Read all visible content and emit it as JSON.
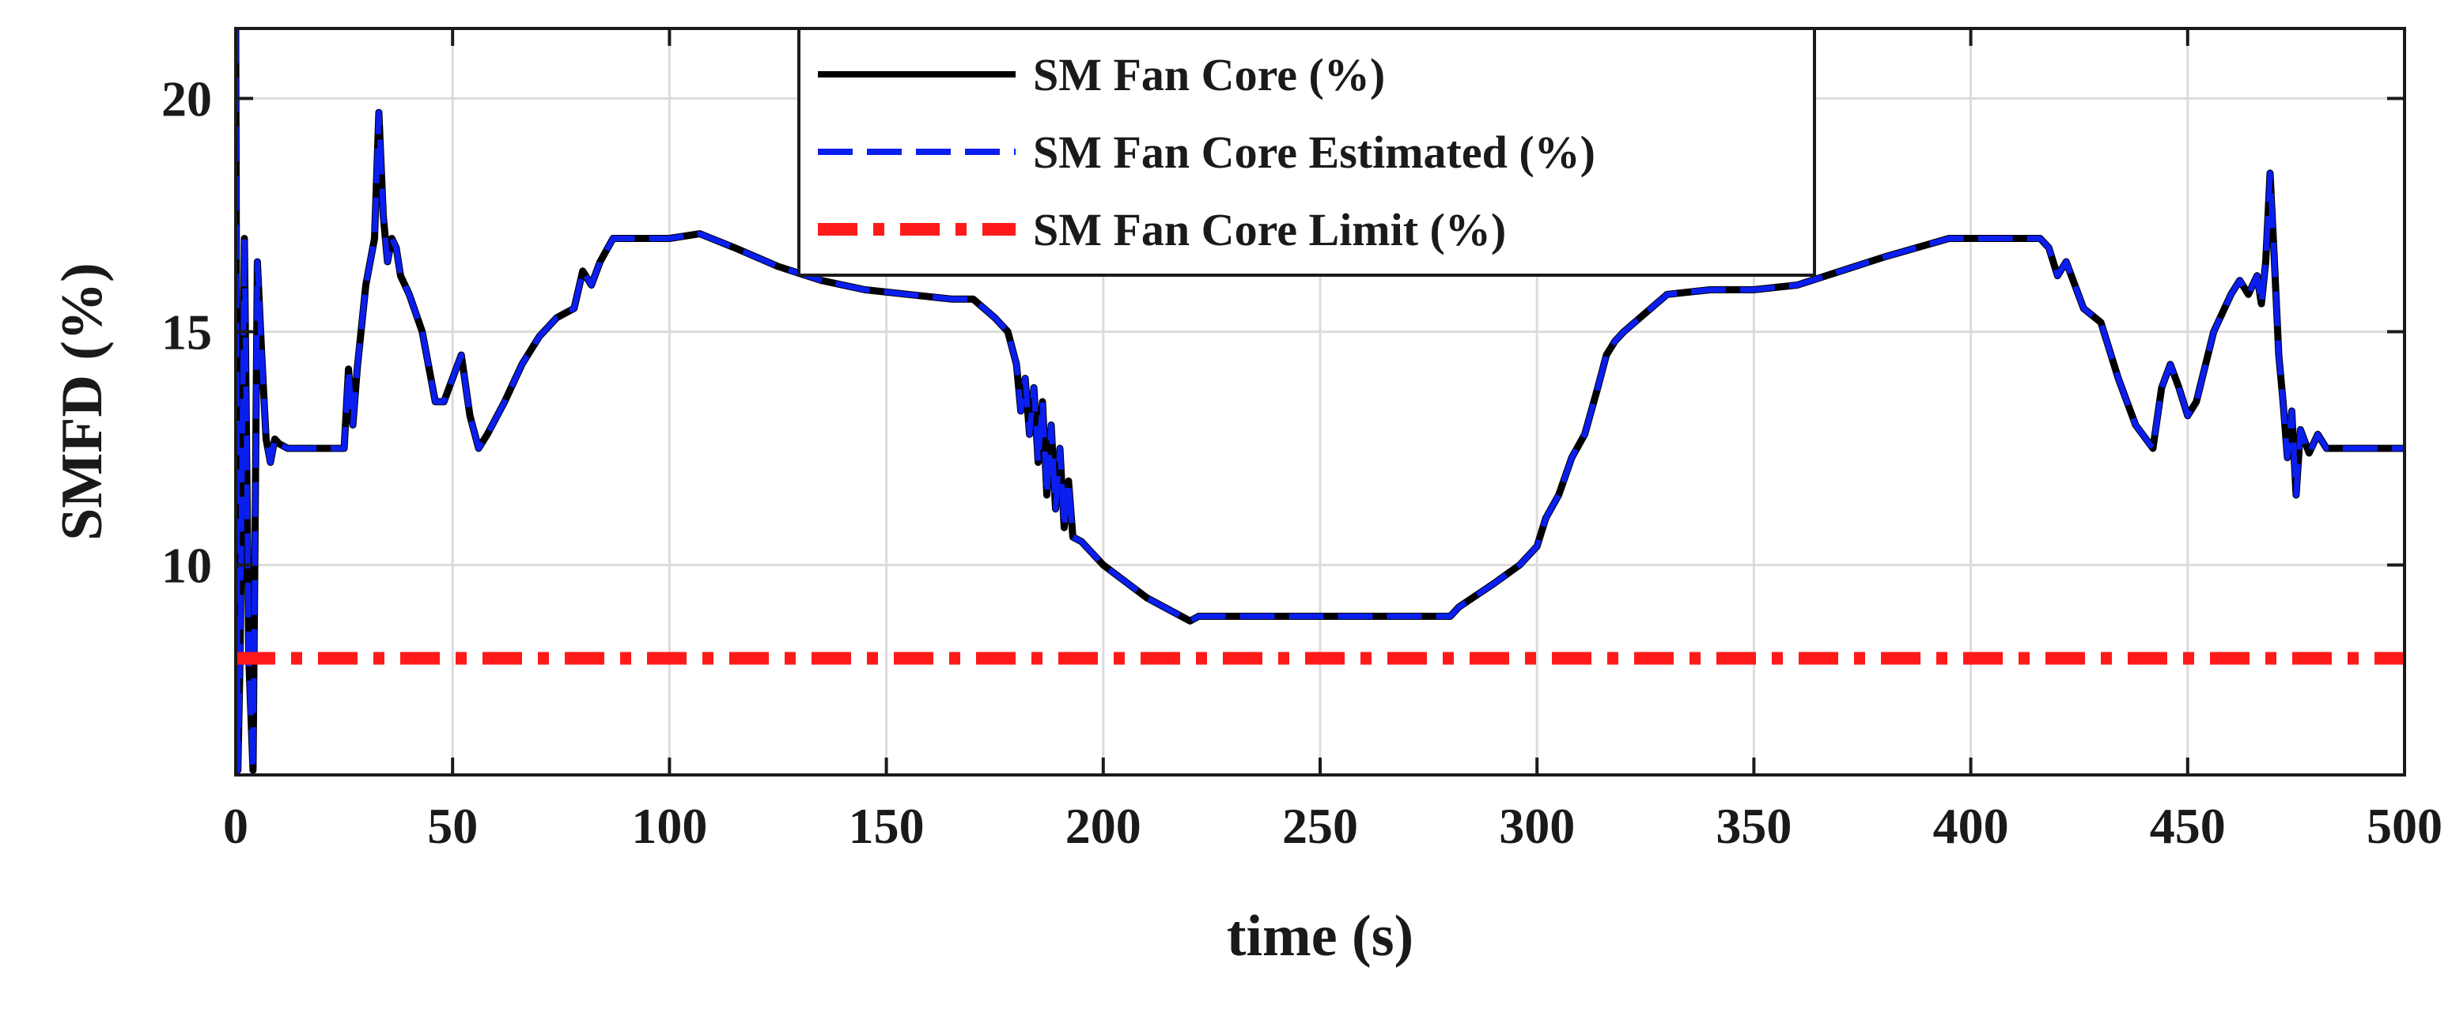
{
  "chart_data": {
    "type": "line",
    "title": "",
    "xlabel": "time (s)",
    "ylabel": "SMFD (%)",
    "xlim": [
      0,
      500
    ],
    "ylim": [
      5.5,
      21.5
    ],
    "xticks": [
      0,
      50,
      100,
      150,
      200,
      250,
      300,
      350,
      400,
      450,
      500
    ],
    "yticks": [
      10,
      15,
      20
    ],
    "grid": true,
    "legend_position": "top-center",
    "series": [
      {
        "name": "SM Fan Core (%)",
        "color": "#000000",
        "style": "solid",
        "x": [
          0,
          0.5,
          1,
          2,
          3,
          4,
          5,
          6,
          7,
          8,
          9,
          10,
          12,
          15,
          20,
          25,
          26,
          27,
          28,
          30,
          32,
          33,
          34,
          35,
          36,
          37,
          38,
          40,
          43,
          46,
          48,
          50,
          52,
          54,
          56,
          58,
          62,
          66,
          70,
          74,
          78,
          80,
          82,
          84,
          87,
          100,
          107,
          115,
          125,
          135,
          145,
          155,
          165,
          170,
          175,
          178,
          180,
          181,
          182,
          183,
          184,
          185,
          186,
          187,
          188,
          189,
          190,
          191,
          192,
          193,
          195,
          200,
          210,
          218,
          220,
          222,
          230,
          250,
          270,
          280,
          282,
          290,
          296,
          300,
          302,
          305,
          308,
          311,
          314,
          316,
          318,
          320,
          330,
          340,
          350,
          360,
          370,
          380,
          395,
          400,
          410,
          416,
          418,
          420,
          422,
          424,
          426,
          430,
          434,
          438,
          442,
          444,
          446,
          448,
          450,
          452,
          456,
          460,
          462,
          464,
          466,
          467,
          468,
          469,
          470,
          471,
          472,
          473,
          474,
          475,
          476,
          478,
          480,
          482,
          485,
          500
        ],
        "y": [
          21.5,
          5.6,
          8.0,
          17.0,
          8.0,
          5.6,
          16.5,
          14.5,
          12.7,
          12.2,
          12.7,
          12.6,
          12.5,
          12.5,
          12.5,
          12.5,
          14.2,
          13.0,
          14.2,
          16.0,
          17.0,
          19.7,
          17.5,
          16.5,
          17.0,
          16.8,
          16.2,
          15.8,
          15.0,
          13.5,
          13.5,
          14.0,
          14.5,
          13.2,
          12.5,
          12.8,
          13.5,
          14.3,
          14.9,
          15.3,
          15.5,
          16.3,
          16.0,
          16.5,
          17.0,
          17.0,
          17.1,
          16.8,
          16.4,
          16.1,
          15.9,
          15.8,
          15.7,
          15.7,
          15.3,
          15.0,
          14.3,
          13.3,
          14.0,
          12.8,
          13.8,
          12.2,
          13.5,
          11.5,
          13.0,
          11.2,
          12.5,
          10.8,
          11.8,
          10.6,
          10.5,
          10.0,
          9.3,
          8.9,
          8.8,
          8.9,
          8.9,
          8.9,
          8.9,
          8.9,
          9.1,
          9.6,
          10.0,
          10.4,
          11.0,
          11.5,
          12.3,
          12.8,
          13.8,
          14.5,
          14.8,
          15.0,
          15.8,
          15.9,
          15.9,
          16.0,
          16.3,
          16.6,
          17.0,
          17.0,
          17.0,
          17.0,
          16.8,
          16.2,
          16.5,
          16.0,
          15.5,
          15.2,
          14.0,
          13.0,
          12.5,
          13.8,
          14.3,
          13.8,
          13.2,
          13.5,
          15.0,
          15.8,
          16.1,
          15.8,
          16.2,
          15.6,
          16.5,
          18.4,
          16.5,
          14.5,
          13.5,
          12.3,
          13.3,
          11.5,
          12.9,
          12.4,
          12.8,
          12.5,
          12.5,
          12.5
        ]
      },
      {
        "name": "SM Fan Core Estimated (%)",
        "color": "#0a1ef0",
        "style": "dashed",
        "x": [
          0,
          0.5,
          1,
          2,
          3,
          4,
          5,
          6,
          7,
          8,
          9,
          10,
          12,
          15,
          20,
          25,
          26,
          27,
          28,
          30,
          32,
          33,
          34,
          35,
          36,
          37,
          38,
          40,
          43,
          46,
          48,
          50,
          52,
          54,
          56,
          58,
          62,
          66,
          70,
          74,
          78,
          80,
          82,
          84,
          87,
          100,
          107,
          115,
          125,
          135,
          145,
          155,
          165,
          170,
          175,
          178,
          180,
          181,
          182,
          183,
          184,
          185,
          186,
          187,
          188,
          189,
          190,
          191,
          192,
          193,
          195,
          200,
          210,
          218,
          220,
          222,
          230,
          250,
          270,
          280,
          282,
          290,
          296,
          300,
          302,
          305,
          308,
          311,
          314,
          316,
          318,
          320,
          330,
          340,
          350,
          360,
          370,
          380,
          395,
          400,
          410,
          416,
          418,
          420,
          422,
          424,
          426,
          430,
          434,
          438,
          442,
          444,
          446,
          448,
          450,
          452,
          456,
          460,
          462,
          464,
          466,
          467,
          468,
          469,
          470,
          471,
          472,
          473,
          474,
          475,
          476,
          478,
          480,
          482,
          485,
          500
        ],
        "y": [
          21.5,
          5.6,
          8.0,
          17.0,
          8.0,
          5.6,
          16.5,
          14.5,
          12.7,
          12.2,
          12.7,
          12.6,
          12.5,
          12.5,
          12.5,
          12.5,
          14.2,
          13.0,
          14.2,
          16.0,
          17.0,
          19.7,
          17.5,
          16.5,
          17.0,
          16.8,
          16.2,
          15.8,
          15.0,
          13.5,
          13.5,
          14.0,
          14.5,
          13.2,
          12.5,
          12.8,
          13.5,
          14.3,
          14.9,
          15.3,
          15.5,
          16.3,
          16.0,
          16.5,
          17.0,
          17.0,
          17.1,
          16.8,
          16.4,
          16.1,
          15.9,
          15.8,
          15.7,
          15.7,
          15.3,
          15.0,
          14.3,
          13.3,
          14.0,
          12.8,
          13.8,
          12.2,
          13.5,
          11.5,
          13.0,
          11.2,
          12.5,
          10.8,
          11.8,
          10.6,
          10.5,
          10.0,
          9.3,
          8.9,
          8.8,
          8.9,
          8.9,
          8.9,
          8.9,
          8.9,
          9.1,
          9.6,
          10.0,
          10.4,
          11.0,
          11.5,
          12.3,
          12.8,
          13.8,
          14.5,
          14.8,
          15.0,
          15.8,
          15.9,
          15.9,
          16.0,
          16.3,
          16.6,
          17.0,
          17.0,
          17.0,
          17.0,
          16.8,
          16.2,
          16.5,
          16.0,
          15.5,
          15.2,
          14.0,
          13.0,
          12.5,
          13.8,
          14.3,
          13.8,
          13.2,
          13.5,
          15.0,
          15.8,
          16.1,
          15.8,
          16.2,
          15.6,
          16.5,
          18.4,
          16.5,
          14.5,
          13.5,
          12.3,
          13.3,
          11.5,
          12.9,
          12.4,
          12.8,
          12.5,
          12.5,
          12.5
        ]
      },
      {
        "name": "SM Fan Core Limit (%)",
        "color": "#ff1a1a",
        "style": "dashdot",
        "x": [
          0,
          500
        ],
        "y": [
          8,
          8
        ]
      }
    ]
  }
}
